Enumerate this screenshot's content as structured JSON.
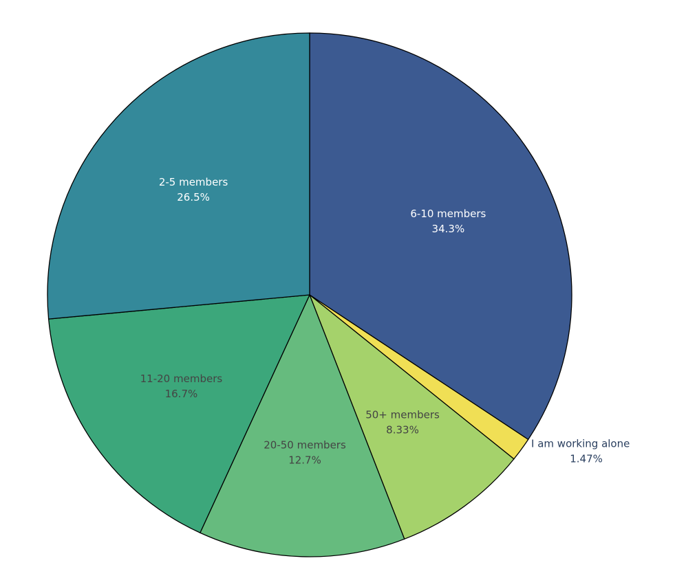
{
  "chart_data": {
    "type": "pie",
    "direction": "clockwise",
    "start_at": "12 o'clock",
    "slices": [
      {
        "label": "6-10 members",
        "percent_text": "34.3%",
        "value": 34.31,
        "color": "#3c5a91",
        "text_color": "#ffffff"
      },
      {
        "label": "I am working alone",
        "percent_text": "1.47%",
        "value": 1.47,
        "color": "#f0df55",
        "text_color": "#2a3f5f",
        "outside": true
      },
      {
        "label": "50+ members",
        "percent_text": "8.33%",
        "value": 8.33,
        "color": "#a5d26b",
        "text_color": "#444444"
      },
      {
        "label": "20-50 members",
        "percent_text": "12.7%",
        "value": 12.75,
        "color": "#66bb7e",
        "text_color": "#444444"
      },
      {
        "label": "11-20 members",
        "percent_text": "16.7%",
        "value": 16.67,
        "color": "#3ca77b",
        "text_color": "#444444"
      },
      {
        "label": "2-5 members",
        "percent_text": "26.5%",
        "value": 26.47,
        "color": "#34899a",
        "text_color": "#ffffff"
      }
    ],
    "legend": "none"
  }
}
